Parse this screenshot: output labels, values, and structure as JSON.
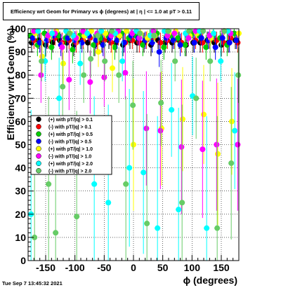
{
  "title": "Efficiency wrt Geom for Primary vs ϕ (degrees) at |  η | <= 1.0 at pT > 0.11",
  "footer": "Tue Sep  7 13:45:32 2021",
  "chart_data": {
    "type": "scatter",
    "xlabel": "ϕ (degrees)",
    "ylabel": "Efficiency wrt Geom (%)",
    "xlim": [
      -180,
      180
    ],
    "ylim": [
      0,
      100
    ],
    "xticks": [
      -150,
      -100,
      -50,
      0,
      50,
      100,
      150
    ],
    "yticks": [
      0,
      10,
      20,
      30,
      40,
      50,
      60,
      70,
      80,
      90,
      100
    ],
    "grid": true,
    "legend_position": "left-middle",
    "series": [
      {
        "name": "(+) with pT/|q| > 0.1",
        "color": "#000000",
        "marker": "circle",
        "x": [
          -174,
          -162,
          -150,
          -138,
          -126,
          -114,
          -102,
          -90,
          -78,
          -66,
          -54,
          -42,
          -30,
          -18,
          -6,
          6,
          18,
          30,
          42,
          54,
          66,
          78,
          90,
          102,
          114,
          126,
          138,
          150,
          162,
          174
        ],
        "y": [
          94,
          95,
          93,
          94,
          95,
          94,
          93,
          95,
          94,
          93,
          94,
          95,
          94,
          93,
          95,
          94,
          94,
          93,
          95,
          94,
          94,
          95,
          93,
          94,
          94,
          95,
          94,
          93,
          94,
          95
        ]
      },
      {
        "name": "(-) with pT/|q| > 0.1",
        "color": "#ff0000",
        "marker": "circle",
        "x": [
          -170,
          -158,
          -146,
          -134,
          -122,
          -110,
          -98,
          -86,
          -74,
          -62,
          -50,
          -38,
          -26,
          -14,
          -2,
          10,
          22,
          34,
          46,
          58,
          70,
          82,
          94,
          106,
          118,
          130,
          142,
          154,
          166,
          178
        ],
        "y": [
          95,
          94,
          95,
          96,
          94,
          95,
          94,
          95,
          96,
          94,
          95,
          94,
          96,
          94,
          95,
          94,
          95,
          96,
          94,
          95,
          95,
          94,
          96,
          95,
          94,
          95,
          95,
          94,
          96,
          94
        ]
      },
      {
        "name": "(+) with pT/|q| > 0.5",
        "color": "#00cc00",
        "marker": "circle",
        "x": [
          -176,
          -164,
          -152,
          -140,
          -128,
          -116,
          -104,
          -92,
          -80,
          -68,
          -56,
          -44,
          -32,
          -20,
          -8,
          4,
          16,
          28,
          40,
          52,
          64,
          76,
          88,
          100,
          112,
          124,
          136,
          148,
          160,
          172
        ],
        "y": [
          97,
          93,
          98,
          92,
          97,
          96,
          91,
          97,
          98,
          93,
          96,
          97,
          92,
          98,
          96,
          97,
          93,
          97,
          98,
          92,
          97,
          96,
          93,
          98,
          97,
          92,
          97,
          96,
          93,
          98
        ]
      },
      {
        "name": "(-) with pT/|q| > 0.5",
        "color": "#0000ff",
        "marker": "circle",
        "x": [
          -172,
          -160,
          -148,
          -136,
          -124,
          -112,
          -100,
          -88,
          -76,
          -64,
          -52,
          -40,
          -28,
          -16,
          -4,
          8,
          20,
          32,
          44,
          56,
          68,
          80,
          92,
          104,
          116,
          128,
          140,
          152,
          164,
          176
        ],
        "y": [
          96,
          94,
          95,
          97,
          93,
          96,
          95,
          94,
          97,
          95,
          93,
          96,
          95,
          94,
          97,
          96,
          95,
          94,
          90,
          96,
          95,
          93,
          97,
          94,
          96,
          95,
          92,
          96,
          94,
          95
        ]
      },
      {
        "name": "(+) with pT/|q| > 1.0",
        "color": "#ffff00",
        "marker": "circle",
        "x": [
          -168,
          -156,
          -144,
          -132,
          -120,
          -108,
          -96,
          -84,
          -72,
          -60,
          -48,
          -36,
          -24,
          -12,
          0,
          12,
          24,
          36,
          48,
          60,
          72,
          84,
          96,
          108,
          120,
          132,
          144,
          156,
          168,
          180
        ],
        "y": [
          98,
          88,
          97,
          99,
          85,
          98,
          96,
          97,
          99,
          90,
          98,
          83,
          97,
          99,
          50,
          98,
          96,
          97,
          57,
          98,
          99,
          61,
          97,
          98,
          63,
          96,
          46,
          99,
          60,
          98
        ]
      },
      {
        "name": "(-) with pT/|q| > 1.0",
        "color": "#ff00ff",
        "marker": "circle",
        "x": [
          -170,
          -158,
          -146,
          -134,
          -122,
          -110,
          -98,
          -86,
          -74,
          -62,
          -50,
          -38,
          -26,
          -14,
          -2,
          10,
          22,
          34,
          46,
          58,
          70,
          82,
          94,
          106,
          118,
          130,
          142,
          154,
          166,
          178
        ],
        "y": [
          99,
          80,
          97,
          98,
          92,
          78,
          96,
          99,
          77,
          98,
          79,
          97,
          99,
          81,
          98,
          96,
          57,
          99,
          56,
          97,
          98,
          49,
          96,
          99,
          48,
          97,
          50,
          99,
          98,
          50
        ]
      },
      {
        "name": "(+) with pT/|q| > 2.0",
        "color": "#00ffff",
        "marker": "circle",
        "x": [
          -175,
          -163,
          -151,
          -139,
          -127,
          -115,
          -103,
          -91,
          -79,
          -67,
          -55,
          -43,
          -31,
          -19,
          -7,
          5,
          17,
          29,
          41,
          53,
          65,
          77,
          89,
          101,
          113,
          125,
          137,
          149,
          161,
          173
        ],
        "y": [
          20,
          99,
          86,
          98,
          70,
          99,
          97,
          85,
          98,
          33,
          99,
          25,
          98,
          86,
          40,
          99,
          38,
          97,
          14,
          99,
          65,
          22,
          98,
          71,
          99,
          14,
          98,
          86,
          99,
          56
        ]
      },
      {
        "name": "(-) with pT/|q| > 2.0",
        "color": "#66cc66",
        "marker": "circle",
        "x": [
          -169,
          -157,
          -145,
          -133,
          -121,
          -109,
          -97,
          -85,
          -73,
          -61,
          -49,
          -37,
          -25,
          -13,
          -1,
          11,
          23,
          35,
          47,
          59,
          71,
          83,
          95,
          107,
          119,
          131,
          143,
          155,
          167,
          179
        ],
        "y": [
          10,
          86,
          33,
          12,
          75,
          98,
          19,
          80,
          87,
          97,
          86,
          99,
          80,
          33,
          67,
          98,
          16,
          97,
          68,
          99,
          86,
          25,
          99,
          70,
          99,
          86,
          14,
          99,
          42,
          80
        ]
      }
    ]
  }
}
